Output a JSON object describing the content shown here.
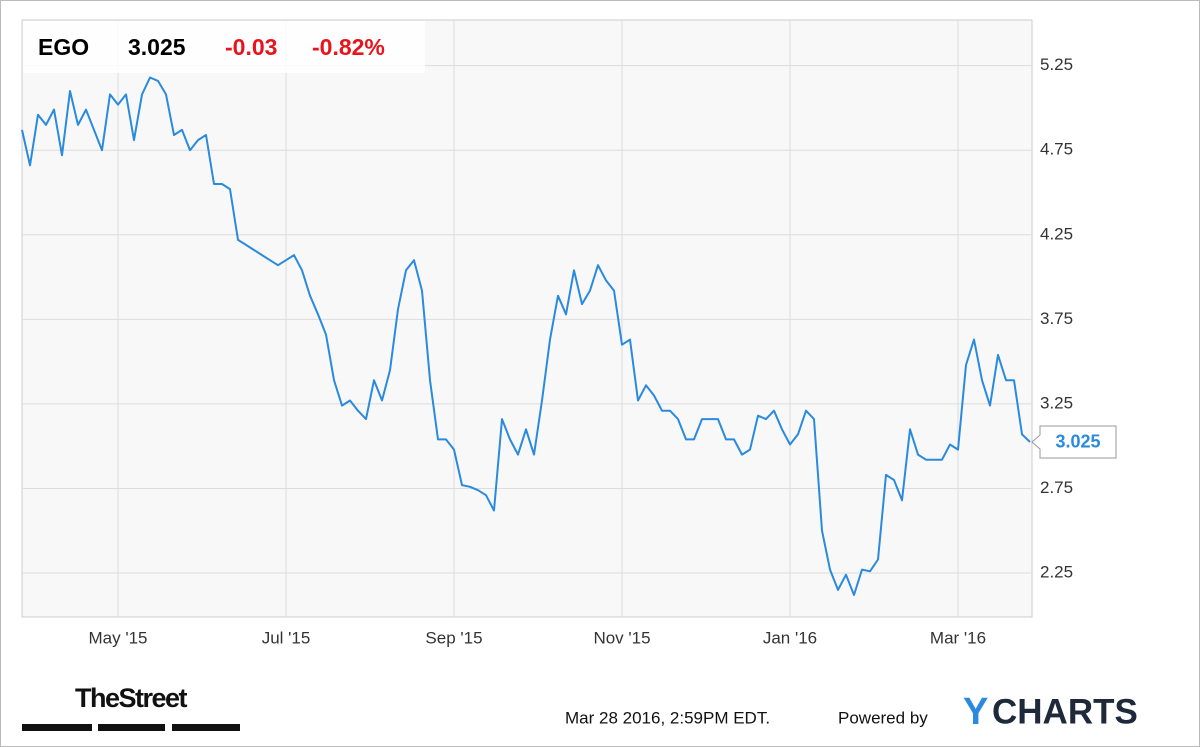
{
  "chart_data": {
    "type": "line",
    "title": "EGO",
    "price": "3.025",
    "change": "-0.03",
    "change_percent": "-0.82%",
    "categories": [
      null,
      null,
      null,
      null,
      null,
      null,
      null,
      null,
      null,
      null,
      null,
      null,
      "May '15",
      null,
      null,
      null,
      null,
      null,
      null,
      null,
      null,
      null,
      null,
      null,
      null,
      null,
      null,
      null,
      null,
      null,
      null,
      null,
      null,
      "Jul '15",
      null,
      null,
      null,
      null,
      null,
      null,
      null,
      null,
      null,
      null,
      null,
      null,
      null,
      null,
      null,
      null,
      null,
      null,
      null,
      null,
      "Sep '15",
      null,
      null,
      null,
      null,
      null,
      null,
      null,
      null,
      null,
      null,
      null,
      null,
      null,
      null,
      null,
      null,
      null,
      null,
      null,
      null,
      "Nov '15",
      null,
      null,
      null,
      null,
      null,
      null,
      null,
      null,
      null,
      null,
      null,
      null,
      null,
      null,
      null,
      null,
      null,
      null,
      null,
      null,
      "Jan '16",
      null,
      null,
      null,
      null,
      null,
      null,
      null,
      null,
      null,
      null,
      null,
      null,
      null,
      null,
      null,
      null,
      null,
      null,
      null,
      null,
      "Mar '16",
      null,
      null,
      null,
      null,
      null,
      null,
      null,
      null,
      null
    ],
    "values": [
      4.87,
      4.66,
      4.96,
      4.9,
      4.99,
      4.72,
      5.1,
      4.9,
      4.99,
      4.87,
      4.75,
      5.08,
      5.02,
      5.08,
      4.81,
      5.08,
      5.18,
      5.16,
      5.08,
      4.84,
      4.87,
      4.75,
      4.81,
      4.84,
      4.55,
      4.55,
      4.52,
      4.22,
      4.19,
      4.16,
      4.13,
      4.1,
      4.07,
      4.1,
      4.13,
      4.04,
      3.89,
      3.78,
      3.66,
      3.39,
      3.24,
      3.27,
      3.21,
      3.16,
      3.39,
      3.27,
      3.45,
      3.81,
      4.04,
      4.1,
      3.92,
      3.39,
      3.04,
      3.04,
      2.98,
      2.77,
      2.76,
      2.74,
      2.71,
      2.62,
      3.16,
      3.04,
      2.95,
      3.1,
      2.95,
      3.27,
      3.63,
      3.89,
      3.78,
      4.04,
      3.84,
      3.92,
      4.07,
      3.98,
      3.92,
      3.6,
      3.63,
      3.27,
      3.36,
      3.3,
      3.21,
      3.21,
      3.16,
      3.04,
      3.04,
      3.16,
      3.16,
      3.16,
      3.04,
      3.04,
      2.95,
      2.98,
      3.18,
      3.16,
      3.21,
      3.1,
      3.01,
      3.07,
      3.21,
      3.16,
      2.5,
      2.27,
      2.15,
      2.24,
      2.12,
      2.27,
      2.26,
      2.33,
      2.83,
      2.8,
      2.68,
      3.1,
      2.95,
      2.92,
      2.92,
      2.92,
      3.01,
      2.98,
      3.48,
      3.63,
      3.39,
      3.24,
      3.54,
      3.39,
      3.39,
      3.07,
      3.025
    ],
    "color": "#2a8ade",
    "ylim": [
      1.99,
      5.52
    ],
    "yticks": [
      2.25,
      2.75,
      3.25,
      3.75,
      4.25,
      4.75,
      5.25
    ],
    "grid": true
  },
  "footer": {
    "source": "TheStreet",
    "timestamp": "Mar 28 2016, 2:59PM EDT.",
    "powered_by": "Powered by",
    "brand": [
      "Y",
      "CHARTS"
    ]
  }
}
